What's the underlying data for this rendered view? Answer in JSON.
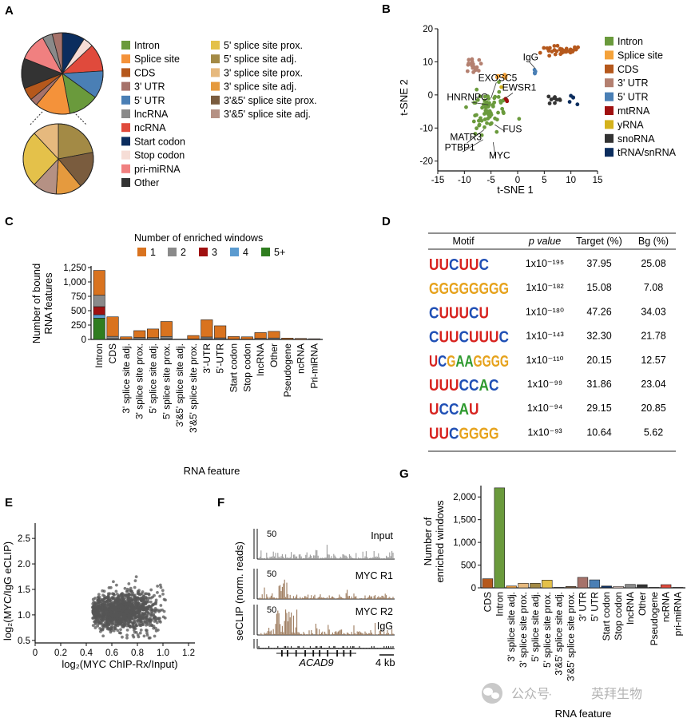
{
  "panels": {
    "a": {
      "label": "A",
      "legend": [
        {
          "label": "Intron",
          "color": "#6a9a3c"
        },
        {
          "label": "Splice site",
          "color": "#f4923a"
        },
        {
          "label": "CDS",
          "color": "#b5581c"
        },
        {
          "label": "3' UTR",
          "color": "#a6726a"
        },
        {
          "label": "5' UTR",
          "color": "#4a7fb5"
        },
        {
          "label": "lncRNA",
          "color": "#8a8a8a"
        },
        {
          "label": "ncRNA",
          "color": "#e04a3c"
        },
        {
          "label": "Start codon",
          "color": "#0b2d5e"
        },
        {
          "label": "Stop codon",
          "color": "#f6ddd6"
        },
        {
          "label": "pri-miRNA",
          "color": "#f08080"
        },
        {
          "label": "Other",
          "color": "#333333"
        },
        {
          "label": "5' splice site prox.",
          "color": "#e4c14a"
        },
        {
          "label": "5' splice site adj.",
          "color": "#a38a45"
        },
        {
          "label": "3' splice site prox.",
          "color": "#e6b97e"
        },
        {
          "label": "3' splice site adj.",
          "color": "#e59a3e"
        },
        {
          "label": "3'&5' splice site prox.",
          "color": "#7a5c3e"
        },
        {
          "label": "3'&5' splice site adj.",
          "color": "#b59184"
        }
      ],
      "pie_main": [
        {
          "label": "Start codon",
          "value": 9,
          "color": "#0b2d5e"
        },
        {
          "label": "Stop codon",
          "value": 4,
          "color": "#f6ddd6"
        },
        {
          "label": "ncRNA",
          "value": 11,
          "color": "#e04a3c"
        },
        {
          "label": "5' UTR",
          "value": 11,
          "color": "#4a7fb5"
        },
        {
          "label": "Intron",
          "value": 12,
          "color": "#6a9a3c"
        },
        {
          "label": "Splice site",
          "value": 14,
          "color": "#f4923a"
        },
        {
          "label": "3' UTR",
          "value": 3,
          "color": "#a6726a"
        },
        {
          "label": "CDS",
          "value": 5,
          "color": "#b5581c"
        },
        {
          "label": "Other",
          "value": 12,
          "color": "#333333"
        },
        {
          "label": "pri-miRNA",
          "value": 11,
          "color": "#f08080"
        },
        {
          "label": "lncRNA",
          "value": 4,
          "color": "#8a8a8a"
        },
        {
          "label": "3' UTR",
          "value": 4,
          "color": "#a6726a"
        }
      ],
      "pie_sub": [
        {
          "label": "5' splice site adj.",
          "value": 22,
          "color": "#a38a45"
        },
        {
          "label": "3'&5' splice site prox.",
          "value": 17,
          "color": "#7a5c3e"
        },
        {
          "label": "3' splice site adj.",
          "value": 12,
          "color": "#e59a3e"
        },
        {
          "label": "3'&5' splice site adj.",
          "value": 11,
          "color": "#b59184"
        },
        {
          "label": "5' splice site prox.",
          "value": 26,
          "color": "#e4c14a"
        },
        {
          "label": "3' splice site prox.",
          "value": 12,
          "color": "#e6b97e"
        }
      ]
    },
    "b": {
      "label": "B",
      "xlabel": "t-SNE 1",
      "ylabel": "t-SNE 2",
      "xticks": [
        "-15",
        "-10",
        "-5",
        "0",
        "5",
        "10",
        "15"
      ],
      "yticks": [
        "20",
        "10",
        "0",
        "-10",
        "-20"
      ],
      "legend": [
        {
          "label": "Intron",
          "color": "#6a9a3c"
        },
        {
          "label": "Splice site",
          "color": "#f4a23a"
        },
        {
          "label": "CDS",
          "color": "#b5581c"
        },
        {
          "label": "3' UTR",
          "color": "#b48070"
        },
        {
          "label": "5' UTR",
          "color": "#4a7fb5"
        },
        {
          "label": "mtRNA",
          "color": "#a01010"
        },
        {
          "label": "yRNA",
          "color": "#d4b21c"
        },
        {
          "label": "snoRNA",
          "color": "#333333"
        },
        {
          "label": "tRNA/snRNA",
          "color": "#0b2d5e"
        }
      ],
      "annotations": [
        {
          "text": "IgG",
          "x": 1.0,
          "y": 10.5
        },
        {
          "text": "EXOSC5",
          "x": -7.4,
          "y": 4.2
        },
        {
          "text": "EWSR1",
          "x": -2.9,
          "y": 1.3
        },
        {
          "text": "HNRNPC",
          "x": -13.3,
          "y": -1.6
        },
        {
          "text": "FUS",
          "x": -2.8,
          "y": -11.2
        },
        {
          "text": "MATR3",
          "x": -12.7,
          "y": -13.7
        },
        {
          "text": "PTBP1",
          "x": -13.7,
          "y": -16.8
        },
        {
          "text": "MYC",
          "x": -5.4,
          "y": -19.2
        }
      ]
    },
    "c": {
      "label": "C",
      "legend_title": "Number of enriched windows",
      "legend": [
        {
          "label": "1",
          "color": "#d9731f"
        },
        {
          "label": "2",
          "color": "#8a8a8a"
        },
        {
          "label": "3",
          "color": "#a01010"
        },
        {
          "label": "4",
          "color": "#5b9bd0"
        },
        {
          "label": "5+",
          "color": "#2f7d1f"
        }
      ],
      "ylabel_line1": "Number of bound",
      "ylabel_line2": "RNA features",
      "xlabel": "RNA feature",
      "yticks": [
        "1,250",
        "1,000",
        "750",
        "500",
        "250",
        "0"
      ]
    },
    "d": {
      "label": "D",
      "headers": {
        "motif": "Motif",
        "pvalue": "p value",
        "target": "Target (%)",
        "bg": "Bg (%)"
      },
      "rows": [
        {
          "motif": "UUCUUC",
          "pvalue": "1x10⁻¹⁹⁵",
          "target": "37.95",
          "bg": "25.08"
        },
        {
          "motif": "GGGGGGGG",
          "pvalue": "1x10⁻¹⁸²",
          "target": "15.08",
          "bg": "7.08"
        },
        {
          "motif": "CUUUCU",
          "pvalue": "1x10⁻¹⁸⁰",
          "target": "47.26",
          "bg": "34.03"
        },
        {
          "motif": "CUUCUUUC",
          "pvalue": "1x10⁻¹⁴³",
          "target": "32.30",
          "bg": "21.78"
        },
        {
          "motif": "UCGAAGGGG",
          "pvalue": "1x10⁻¹¹⁰",
          "target": "20.15",
          "bg": "12.57"
        },
        {
          "motif": "UUUCCAC",
          "pvalue": "1x10⁻⁹⁹",
          "target": "31.86",
          "bg": "23.04"
        },
        {
          "motif": "UCCAU",
          "pvalue": "1x10⁻⁹⁴",
          "target": "29.15",
          "bg": "20.85"
        },
        {
          "motif": "UUCGGGG",
          "pvalue": "1x10⁻⁹³",
          "target": "10.64",
          "bg": "5.62"
        }
      ]
    },
    "e": {
      "label": "E",
      "xlabel": "log₂(MYC ChIP-Rx/Input)",
      "ylabel": "log₂(MYC/IgG eCLIP)",
      "xticks": [
        "0",
        "0.2",
        "0.4",
        "0.6",
        "0.8",
        "1.0",
        "1.2"
      ],
      "yticks": [
        "2.5",
        "2.0",
        "1.5",
        "1.0",
        "0.5"
      ]
    },
    "f": {
      "label": "F",
      "ylabel": "seCLIP (norm. reads)",
      "scale": "50",
      "tracks": [
        "Input",
        "MYC R1",
        "MYC R2",
        "IgG"
      ],
      "gene": "ACAD9",
      "scalebar": "4 kb"
    },
    "g": {
      "label": "G",
      "ylabel_line1": "Number of",
      "ylabel_line2": "enriched windows",
      "xlabel": "RNA feature",
      "yticks": [
        "2,000",
        "1,500",
        "1,000",
        "500",
        "0"
      ]
    }
  },
  "watermark": {
    "text1": "公众号",
    "dot": "·",
    "text2": "英拜生物"
  },
  "chart_data": [
    {
      "panel": "C",
      "type": "bar",
      "stacked": true,
      "title": "Number of enriched windows",
      "xlabel": "RNA feature",
      "ylabel": "Number of bound RNA features",
      "ylim": [
        0,
        1250
      ],
      "categories": [
        "Intron",
        "CDS",
        "3' splice site adj.",
        "3' splice site prox.",
        "5' splice site adj.",
        "5' splice site prox.",
        "3'&5' splice site adj.",
        "3'&5' splice site prox.",
        "3'-UTR",
        "5'-UTR",
        "Start codon",
        "Stop codon",
        "lncRNA",
        "Other",
        "Pseudogene",
        "ncRNA",
        "Pri-miRNA"
      ],
      "series": [
        {
          "name": "1",
          "color": "#d9731f",
          "values": [
            430,
            340,
            40,
            120,
            150,
            260,
            5,
            60,
            300,
            210,
            45,
            40,
            100,
            115,
            20,
            15,
            10
          ]
        },
        {
          "name": "2",
          "color": "#8a8a8a",
          "values": [
            200,
            40,
            5,
            25,
            25,
            40,
            0,
            8,
            30,
            20,
            5,
            5,
            15,
            20,
            3,
            2,
            2
          ]
        },
        {
          "name": "3",
          "color": "#a01010",
          "values": [
            140,
            5,
            0,
            4,
            3,
            5,
            0,
            0,
            5,
            3,
            0,
            0,
            2,
            2,
            0,
            0,
            0
          ]
        },
        {
          "name": "4",
          "color": "#5b9bd0",
          "values": [
            60,
            3,
            0,
            2,
            2,
            3,
            0,
            0,
            3,
            2,
            0,
            0,
            1,
            1,
            0,
            0,
            0
          ]
        },
        {
          "name": "5+",
          "color": "#2f7d1f",
          "values": [
            370,
            5,
            0,
            2,
            2,
            4,
            0,
            0,
            4,
            2,
            0,
            0,
            1,
            2,
            0,
            0,
            0
          ]
        }
      ]
    },
    {
      "panel": "G",
      "type": "bar",
      "xlabel": "RNA feature",
      "ylabel": "Number of enriched windows",
      "ylim": [
        0,
        2250
      ],
      "categories": [
        "CDS",
        "Intron",
        "3' splice site adj.",
        "3' splice site prox.",
        "5' splice site adj.",
        "5' splice site prox.",
        "3'&5' splice site adj.",
        "3'&5' splice site prox.",
        "3' UTR",
        "5' UTR",
        "Start codon",
        "Stop codon",
        "lncRNA",
        "Other",
        "Pseudogene",
        "ncRNA",
        "pri-miRNA"
      ],
      "values": [
        200,
        2200,
        40,
        100,
        100,
        170,
        10,
        30,
        230,
        175,
        40,
        30,
        75,
        70,
        10,
        70,
        10
      ],
      "colors": [
        "#b5581c",
        "#6a9a3c",
        "#e59a3e",
        "#e6b97e",
        "#a38a45",
        "#e4c14a",
        "#b59184",
        "#7a5c3e",
        "#a6726a",
        "#4a7fb5",
        "#0b2d5e",
        "#f6ddd6",
        "#8a8a8a",
        "#333333",
        "#999999",
        "#e04a3c",
        "#f08080"
      ]
    },
    {
      "panel": "B",
      "type": "scatter",
      "xlabel": "t-SNE 1",
      "ylabel": "t-SNE 2",
      "xlim": [
        -15,
        15
      ],
      "ylim": [
        -22,
        20
      ],
      "clusters": [
        {
          "name": "Intron",
          "color": "#6a9a3c",
          "cx": -5.5,
          "cy": -5.5,
          "sx": 2.2,
          "sy": 4.5,
          "n": 70
        },
        {
          "name": "CDS",
          "color": "#b5581c",
          "cx": 8.0,
          "cy": 13.5,
          "sx": 2.5,
          "sy": 1.0,
          "n": 32
        },
        {
          "name": "3' UTR",
          "color": "#b48070",
          "cx": -8.5,
          "cy": 9.0,
          "sx": 1.3,
          "sy": 1.6,
          "n": 18
        },
        {
          "name": "Splice site",
          "color": "#f4a23a",
          "cx": -2.8,
          "cy": 5.5,
          "sx": 1.3,
          "sy": 0.8,
          "n": 7
        },
        {
          "name": "5' UTR",
          "color": "#4a7fb5",
          "cx": 3.5,
          "cy": 7.0,
          "sx": 0.6,
          "sy": 0.6,
          "n": 4
        },
        {
          "name": "snoRNA",
          "color": "#333333",
          "cx": 7.0,
          "cy": -1.5,
          "sx": 1.0,
          "sy": 1.0,
          "n": 9
        },
        {
          "name": "tRNA/snRNA",
          "color": "#0b2d5e",
          "cx": 10.5,
          "cy": -0.5,
          "sx": 0.6,
          "sy": 1.2,
          "n": 5
        },
        {
          "name": "mtRNA",
          "color": "#a01010",
          "cx": -2.2,
          "cy": -1.0,
          "sx": 0.6,
          "sy": 0.6,
          "n": 3
        },
        {
          "name": "yRNA",
          "color": "#d4b21c",
          "cx": -3.0,
          "cy": 2.5,
          "sx": 0.3,
          "sy": 0.3,
          "n": 1
        }
      ]
    },
    {
      "panel": "E",
      "type": "scatter",
      "xlabel": "log2(MYC ChIP-Rx/Input)",
      "ylabel": "log2(MYC/IgG eCLIP)",
      "xlim": [
        0,
        1.25
      ],
      "ylim": [
        0.45,
        2.8
      ],
      "cluster": {
        "cx": 0.68,
        "cy": 1.08,
        "sx": 0.13,
        "sy": 0.18,
        "n": 1300,
        "xmin": 0.45,
        "xmax": 1.02,
        "color": "#555555"
      }
    }
  ]
}
